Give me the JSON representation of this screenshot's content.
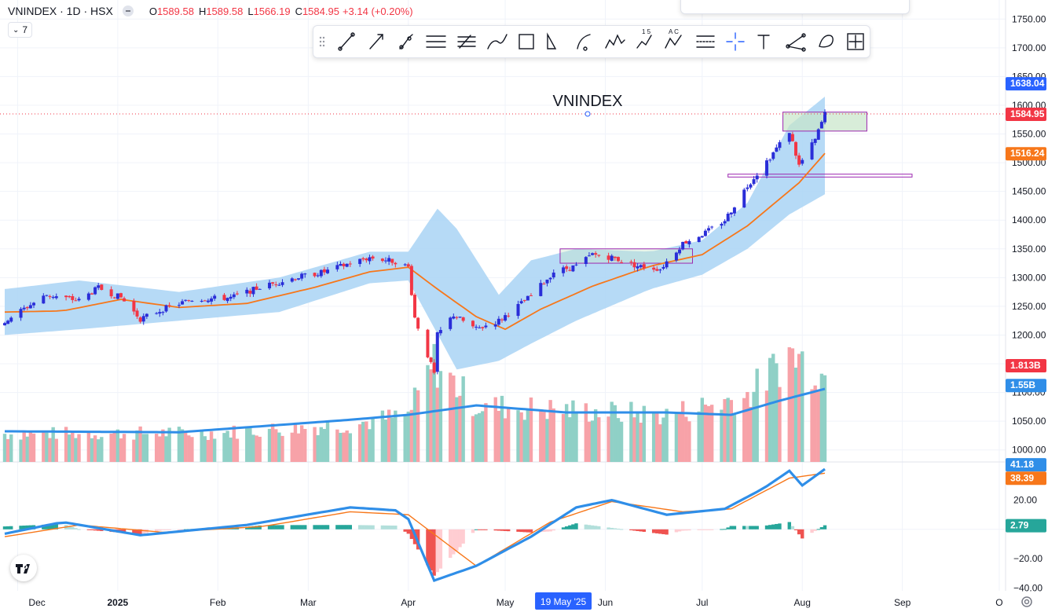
{
  "header": {
    "symbol": "VNINDEX · 1D · HSX",
    "o_label": "O",
    "o_value": "1589.58",
    "h_label": "H",
    "h_value": "1589.58",
    "l_label": "L",
    "l_value": "1566.19",
    "c_label": "C",
    "c_value": "1584.95",
    "change": "+3.14 (+0.20%)",
    "indicator_count": "7"
  },
  "watermark": "VNINDEX",
  "colors": {
    "up": "#2a2ed8",
    "down": "#f23645",
    "ma": "#f7771a",
    "band": "#a9d3f5",
    "vol_up": "#8fd0c6",
    "vol_down": "#f7a2a8",
    "macd": "#2f8ee8",
    "signal": "#f7771a",
    "hist_up_strong": "#26a69a",
    "hist_up_weak": "#b2dfdb",
    "hist_down_strong": "#ef5350",
    "hist_down_weak": "#ffcdd2"
  },
  "chart_data": {
    "type": "candlestick",
    "x_ticks": [
      "Dec",
      "2025",
      "Feb",
      "Mar",
      "Apr",
      "May",
      "Jun",
      "Jul",
      "Aug",
      "Sep",
      "O"
    ],
    "crosshair_date": "19 May '25",
    "price_axis": {
      "ticks": [
        1750,
        1700,
        1650,
        1600,
        1550,
        1500,
        1450,
        1400,
        1350,
        1300,
        1250,
        1200,
        1150,
        1100,
        1050,
        1000
      ],
      "range": [
        990,
        1770
      ]
    },
    "price_labels": {
      "ma": "1638.04",
      "last": "1584.95",
      "sma20": "1516.24",
      "vol": "1.813B",
      "vol_ma": "1.55B"
    },
    "macd_axis": {
      "ticks": [
        "20.00",
        "−20.00",
        "−40.00"
      ],
      "range": [
        -42,
        45
      ]
    },
    "macd_labels": {
      "macd": "41.18",
      "signal": "38.39",
      "hist": "2.79"
    },
    "price_anchors": [
      {
        "date": "2024-11-27",
        "v": 1225
      },
      {
        "date": "2024-12-10",
        "v": 1270
      },
      {
        "date": "2024-12-20",
        "v": 1260
      },
      {
        "date": "2024-12-26",
        "v": 1282
      },
      {
        "date": "2025-01-02",
        "v": 1265
      },
      {
        "date": "2025-01-08",
        "v": 1228
      },
      {
        "date": "2025-01-15",
        "v": 1245
      },
      {
        "date": "2025-01-24",
        "v": 1262
      },
      {
        "date": "2025-02-05",
        "v": 1265
      },
      {
        "date": "2025-02-14",
        "v": 1283
      },
      {
        "date": "2025-02-25",
        "v": 1300
      },
      {
        "date": "2025-03-06",
        "v": 1310
      },
      {
        "date": "2025-03-14",
        "v": 1325
      },
      {
        "date": "2025-03-20",
        "v": 1335
      },
      {
        "date": "2025-03-28",
        "v": 1328
      },
      {
        "date": "2025-04-01",
        "v": 1318
      },
      {
        "date": "2025-04-03",
        "v": 1230
      },
      {
        "date": "2025-04-09",
        "v": 1132
      },
      {
        "date": "2025-04-10",
        "v": 1200
      },
      {
        "date": "2025-04-15",
        "v": 1235
      },
      {
        "date": "2025-04-22",
        "v": 1210
      },
      {
        "date": "2025-04-29",
        "v": 1225
      },
      {
        "date": "2025-05-09",
        "v": 1268
      },
      {
        "date": "2025-05-16",
        "v": 1310
      },
      {
        "date": "2025-05-23",
        "v": 1320
      },
      {
        "date": "2025-05-28",
        "v": 1340
      },
      {
        "date": "2025-06-03",
        "v": 1335
      },
      {
        "date": "2025-06-11",
        "v": 1320
      },
      {
        "date": "2025-06-18",
        "v": 1315
      },
      {
        "date": "2025-06-25",
        "v": 1360
      },
      {
        "date": "2025-07-02",
        "v": 1378
      },
      {
        "date": "2025-07-08",
        "v": 1400
      },
      {
        "date": "2025-07-15",
        "v": 1460
      },
      {
        "date": "2025-07-22",
        "v": 1510
      },
      {
        "date": "2025-07-28",
        "v": 1555
      },
      {
        "date": "2025-07-31",
        "v": 1495
      },
      {
        "date": "2025-08-05",
        "v": 1540
      },
      {
        "date": "2025-08-08",
        "v": 1584.95
      }
    ],
    "ma_anchors": [
      {
        "date": "2024-11-27",
        "v": 1240
      },
      {
        "date": "2024-12-15",
        "v": 1242
      },
      {
        "date": "2025-01-02",
        "v": 1262
      },
      {
        "date": "2025-01-20",
        "v": 1248
      },
      {
        "date": "2025-02-10",
        "v": 1255
      },
      {
        "date": "2025-03-03",
        "v": 1283
      },
      {
        "date": "2025-03-20",
        "v": 1310
      },
      {
        "date": "2025-04-01",
        "v": 1318
      },
      {
        "date": "2025-04-10",
        "v": 1280
      },
      {
        "date": "2025-04-22",
        "v": 1232
      },
      {
        "date": "2025-05-01",
        "v": 1210
      },
      {
        "date": "2025-05-12",
        "v": 1245
      },
      {
        "date": "2025-05-28",
        "v": 1285
      },
      {
        "date": "2025-06-15",
        "v": 1320
      },
      {
        "date": "2025-07-01",
        "v": 1340
      },
      {
        "date": "2025-07-15",
        "v": 1390
      },
      {
        "date": "2025-07-31",
        "v": 1465
      },
      {
        "date": "2025-08-08",
        "v": 1516.24
      }
    ],
    "band_upper": [
      {
        "date": "2024-11-27",
        "v": 1280
      },
      {
        "date": "2024-12-20",
        "v": 1295
      },
      {
        "date": "2025-01-20",
        "v": 1275
      },
      {
        "date": "2025-02-20",
        "v": 1300
      },
      {
        "date": "2025-03-20",
        "v": 1345
      },
      {
        "date": "2025-04-01",
        "v": 1345
      },
      {
        "date": "2025-04-10",
        "v": 1420
      },
      {
        "date": "2025-04-16",
        "v": 1385
      },
      {
        "date": "2025-04-29",
        "v": 1270
      },
      {
        "date": "2025-05-09",
        "v": 1330
      },
      {
        "date": "2025-05-23",
        "v": 1350
      },
      {
        "date": "2025-06-15",
        "v": 1345
      },
      {
        "date": "2025-07-01",
        "v": 1365
      },
      {
        "date": "2025-07-15",
        "v": 1430
      },
      {
        "date": "2025-07-28",
        "v": 1565
      },
      {
        "date": "2025-08-08",
        "v": 1615
      }
    ],
    "band_lower": [
      {
        "date": "2024-11-27",
        "v": 1200
      },
      {
        "date": "2024-12-20",
        "v": 1210
      },
      {
        "date": "2025-01-20",
        "v": 1225
      },
      {
        "date": "2025-02-20",
        "v": 1240
      },
      {
        "date": "2025-03-20",
        "v": 1290
      },
      {
        "date": "2025-04-01",
        "v": 1295
      },
      {
        "date": "2025-04-16",
        "v": 1140
      },
      {
        "date": "2025-04-29",
        "v": 1155
      },
      {
        "date": "2025-05-09",
        "v": 1185
      },
      {
        "date": "2025-05-23",
        "v": 1225
      },
      {
        "date": "2025-06-15",
        "v": 1280
      },
      {
        "date": "2025-07-01",
        "v": 1305
      },
      {
        "date": "2025-07-15",
        "v": 1350
      },
      {
        "date": "2025-07-28",
        "v": 1410
      },
      {
        "date": "2025-08-08",
        "v": 1445
      }
    ],
    "volume_axis": {
      "max": 2.5
    },
    "volume_anchors": [
      {
        "date": "2024-11-27",
        "v": 0.6
      },
      {
        "date": "2025-02-01",
        "v": 0.62
      },
      {
        "date": "2025-03-15",
        "v": 0.8
      },
      {
        "date": "2025-04-01",
        "v": 1.0
      },
      {
        "date": "2025-04-09",
        "v": 2.1
      },
      {
        "date": "2025-04-22",
        "v": 1.2
      },
      {
        "date": "2025-05-20",
        "v": 1.1
      },
      {
        "date": "2025-06-20",
        "v": 1.0
      },
      {
        "date": "2025-07-15",
        "v": 1.4
      },
      {
        "date": "2025-07-28",
        "v": 2.3
      },
      {
        "date": "2025-08-05",
        "v": 2.0
      },
      {
        "date": "2025-08-08",
        "v": 1.813
      }
    ],
    "volume_ma_anchors": [
      {
        "date": "2024-11-27",
        "v": 0.65
      },
      {
        "date": "2025-01-20",
        "v": 0.63
      },
      {
        "date": "2025-03-15",
        "v": 0.9
      },
      {
        "date": "2025-04-01",
        "v": 1.0
      },
      {
        "date": "2025-04-22",
        "v": 1.2
      },
      {
        "date": "2025-05-20",
        "v": 1.05
      },
      {
        "date": "2025-06-20",
        "v": 1.05
      },
      {
        "date": "2025-07-10",
        "v": 1.0
      },
      {
        "date": "2025-07-25",
        "v": 1.3
      },
      {
        "date": "2025-08-08",
        "v": 1.55
      }
    ],
    "macd_anchors": [
      {
        "date": "2024-11-27",
        "v": -3
      },
      {
        "date": "2024-12-15",
        "v": 5
      },
      {
        "date": "2025-01-08",
        "v": -4
      },
      {
        "date": "2025-02-10",
        "v": 3
      },
      {
        "date": "2025-03-14",
        "v": 15
      },
      {
        "date": "2025-03-28",
        "v": 13
      },
      {
        "date": "2025-04-01",
        "v": 7
      },
      {
        "date": "2025-04-09",
        "v": -35
      },
      {
        "date": "2025-04-22",
        "v": -25
      },
      {
        "date": "2025-05-09",
        "v": -5
      },
      {
        "date": "2025-05-23",
        "v": 15
      },
      {
        "date": "2025-06-03",
        "v": 20
      },
      {
        "date": "2025-06-20",
        "v": 10
      },
      {
        "date": "2025-07-08",
        "v": 14
      },
      {
        "date": "2025-07-20",
        "v": 28
      },
      {
        "date": "2025-07-28",
        "v": 40
      },
      {
        "date": "2025-08-01",
        "v": 30
      },
      {
        "date": "2025-08-08",
        "v": 41.18
      }
    ],
    "signal_anchors": [
      {
        "date": "2024-11-27",
        "v": -5
      },
      {
        "date": "2024-12-20",
        "v": 3
      },
      {
        "date": "2025-01-15",
        "v": -2
      },
      {
        "date": "2025-02-15",
        "v": 2
      },
      {
        "date": "2025-03-14",
        "v": 12
      },
      {
        "date": "2025-04-01",
        "v": 10
      },
      {
        "date": "2025-04-22",
        "v": -25
      },
      {
        "date": "2025-05-15",
        "v": 5
      },
      {
        "date": "2025-06-03",
        "v": 19
      },
      {
        "date": "2025-06-25",
        "v": 12
      },
      {
        "date": "2025-07-10",
        "v": 14
      },
      {
        "date": "2025-07-28",
        "v": 35
      },
      {
        "date": "2025-08-08",
        "v": 38.39
      }
    ]
  }
}
